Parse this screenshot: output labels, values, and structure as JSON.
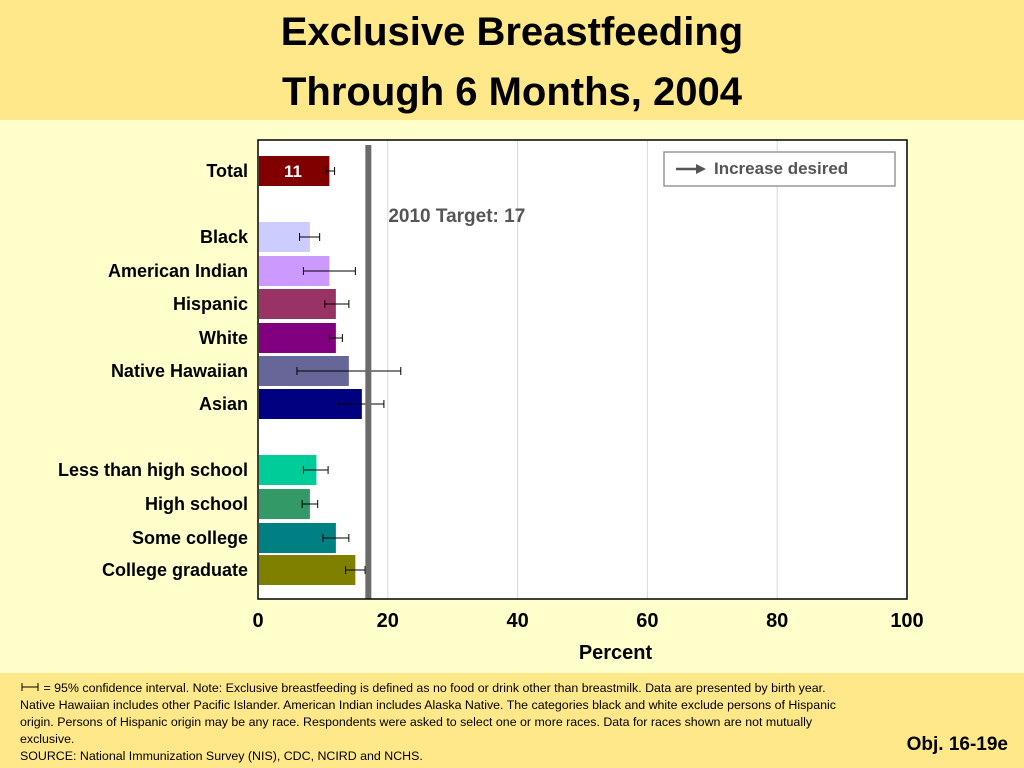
{
  "header": {
    "title_line1": "Exclusive Breastfeeding",
    "title_line2": "Through 6 Months, 2004"
  },
  "footer": {
    "note": "= 95% confidence interval.  Note:  Exclusive breastfeeding is defined as no food or drink other than breastmilk.  Data are presented by birth year.  Native Hawaiian includes other Pacific Islander.  American Indian includes Alaska Native. The categories black and white exclude persons of Hispanic origin. Persons of Hispanic origin may be any race. Respondents were asked to select one or more races. Data for races shown are not mutually exclusive.",
    "source": "SOURCE:  National Immunization Survey (NIS), CDC, NCIRD and NCHS.",
    "objective": "Obj. 16-19e"
  },
  "chart_data": {
    "type": "bar",
    "orientation": "horizontal",
    "xlabel": "Percent",
    "xlim": [
      0,
      100
    ],
    "xticks": [
      "0",
      "20",
      "40",
      "60",
      "80",
      "100"
    ],
    "grid": "vertical",
    "target": {
      "value": 17,
      "label": "2010 Target: 17"
    },
    "legend": {
      "label": "Increase desired",
      "position": "top-right"
    },
    "categories": [
      {
        "label": "Total",
        "value": 11,
        "ci": [
          10.5,
          11.8
        ],
        "color": "#800000",
        "data_label": "11"
      },
      {
        "label": "Black",
        "value": 8,
        "ci": [
          6.4,
          9.5
        ],
        "color": "#ccccff",
        "data_label": ""
      },
      {
        "label": "American Indian",
        "value": 11,
        "ci": [
          7,
          15
        ],
        "color": "#cc99ff",
        "data_label": ""
      },
      {
        "label": "Hispanic",
        "value": 12,
        "ci": [
          10.3,
          14
        ],
        "color": "#993366",
        "data_label": ""
      },
      {
        "label": "White",
        "value": 12,
        "ci": [
          11,
          13
        ],
        "color": "#800080",
        "data_label": ""
      },
      {
        "label": "Native Hawaiian",
        "value": 14,
        "ci": [
          6,
          22
        ],
        "color": "#666699",
        "data_label": ""
      },
      {
        "label": "Asian",
        "value": 16,
        "ci": [
          12.3,
          19.4
        ],
        "color": "#000080",
        "data_label": ""
      },
      {
        "label": "Less than high school",
        "value": 9,
        "ci": [
          7,
          10.8
        ],
        "color": "#00cc99",
        "data_label": ""
      },
      {
        "label": "High school",
        "value": 8,
        "ci": [
          6.8,
          9.2
        ],
        "color": "#339966",
        "data_label": ""
      },
      {
        "label": "Some college",
        "value": 12,
        "ci": [
          10,
          14
        ],
        "color": "#008080",
        "data_label": ""
      },
      {
        "label": "College graduate",
        "value": 15,
        "ci": [
          13.5,
          16.5
        ],
        "color": "#808000",
        "data_label": ""
      }
    ]
  }
}
